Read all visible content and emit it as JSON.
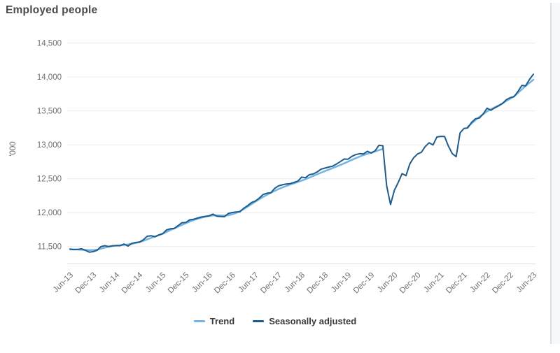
{
  "chart_data": {
    "type": "line",
    "title": "Employed people",
    "ylabel": "'000",
    "xlabel": "",
    "frequency": "monthly",
    "x_start": "Jun-13",
    "x_end": "Jun-23",
    "x_tick_interval_months": 6,
    "x_tick_labels": [
      "Jun-13",
      "Dec-13",
      "Jun-14",
      "Dec-14",
      "Jun-15",
      "Dec-15",
      "Jun-16",
      "Dec-16",
      "Jun-17",
      "Dec-17",
      "Jun-18",
      "Dec-18",
      "Jun-19",
      "Dec-19",
      "Jun-20",
      "Dec-20",
      "Jun-21",
      "Dec-21",
      "Jun-22",
      "Dec-22",
      "Jun-23"
    ],
    "y_ticks": [
      {
        "value": 11500,
        "label": "11,500"
      },
      {
        "value": 12000,
        "label": "12,000"
      },
      {
        "value": 12500,
        "label": "12,500"
      },
      {
        "value": 13000,
        "label": "13,000"
      },
      {
        "value": 13500,
        "label": "13,500"
      },
      {
        "value": 14000,
        "label": "14,000"
      },
      {
        "value": 14500,
        "label": "14,500"
      }
    ],
    "ylim": [
      11250,
      14640
    ],
    "grid": "horizontal",
    "legend_position": "bottom",
    "colors": {
      "grid": "#ececec",
      "baseline": "#cfe0ef",
      "tick_text": "#6e6e6e",
      "title_text": "#4b4b4b"
    },
    "series": [
      {
        "name": "Trend",
        "color": "#74b5e3",
        "width": 2.5,
        "note_gap": "trend suspended Apr-20 to Dec-21",
        "values": [
          11462,
          11459,
          11456,
          11453,
          11450,
          11448,
          11448,
          11455,
          11468,
          11484,
          11498,
          11508,
          11514,
          11519,
          11524,
          11531,
          11541,
          11552,
          11566,
          11584,
          11606,
          11628,
          11648,
          11668,
          11690,
          11715,
          11742,
          11768,
          11794,
          11820,
          11845,
          11868,
          11889,
          11908,
          11925,
          11940,
          11951,
          11958,
          11960,
          11958,
          11957,
          11962,
          11975,
          11995,
          12022,
          12054,
          12089,
          12125,
          12161,
          12197,
          12231,
          12263,
          12293,
          12321,
          12347,
          12371,
          12393,
          12413,
          12432,
          12452,
          12472,
          12494,
          12517,
          12541,
          12565,
          12589,
          12612,
          12634,
          12656,
          12679,
          12703,
          12727,
          12752,
          12778,
          12803,
          12827,
          12849,
          12868,
          12885,
          12902,
          12921,
          12940,
          null,
          null,
          null,
          null,
          null,
          null,
          null,
          null,
          null,
          null,
          null,
          null,
          null,
          null,
          null,
          null,
          null,
          null,
          null,
          null,
          null,
          13265,
          13315,
          13365,
          13410,
          13452,
          13492,
          13525,
          13553,
          13580,
          13612,
          13648,
          13680,
          13715,
          13765,
          13818,
          13868,
          13915,
          13960
        ]
      },
      {
        "name": "Seasonally adjusted",
        "color": "#1f5c8c",
        "width": 2,
        "values": [
          11461,
          11455,
          11459,
          11467,
          11445,
          11418,
          11425,
          11445,
          11498,
          11513,
          11500,
          11512,
          11515,
          11513,
          11537,
          11508,
          11547,
          11560,
          11565,
          11600,
          11652,
          11660,
          11645,
          11672,
          11689,
          11745,
          11762,
          11766,
          11810,
          11852,
          11856,
          11894,
          11902,
          11920,
          11935,
          11945,
          11953,
          11979,
          11948,
          11942,
          11940,
          11988,
          12002,
          12009,
          12012,
          12066,
          12103,
          12148,
          12172,
          12213,
          12267,
          12287,
          12293,
          12358,
          12395,
          12410,
          12423,
          12428,
          12445,
          12465,
          12525,
          12515,
          12560,
          12570,
          12600,
          12640,
          12657,
          12672,
          12684,
          12716,
          12752,
          12790,
          12788,
          12830,
          12855,
          12870,
          12866,
          12905,
          12878,
          12911,
          12992,
          12986,
          12395,
          12120,
          12330,
          12445,
          12575,
          12545,
          12720,
          12810,
          12865,
          12890,
          12975,
          13030,
          12998,
          13115,
          13124,
          13122,
          12980,
          12870,
          12825,
          13175,
          13240,
          13250,
          13330,
          13385,
          13395,
          13455,
          13540,
          13510,
          13545,
          13575,
          13610,
          13665,
          13695,
          13710,
          13785,
          13875,
          13870,
          13965,
          14040
        ]
      }
    ]
  }
}
